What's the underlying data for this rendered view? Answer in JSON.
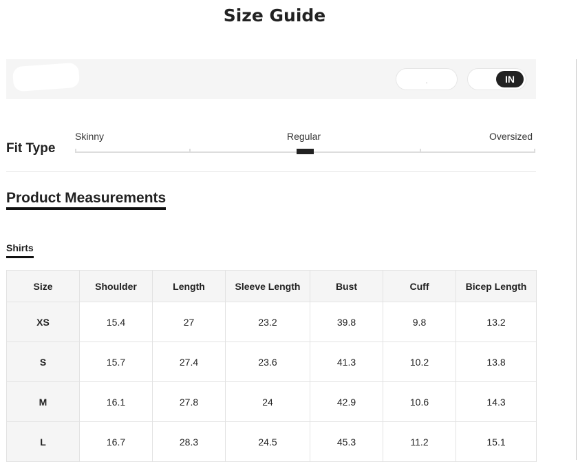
{
  "title": "Size Guide",
  "unit_toggle": {
    "selected": "IN"
  },
  "fit_type": {
    "label": "Fit Type",
    "options": [
      "Skinny",
      "Regular",
      "Oversized"
    ],
    "selected": "Regular"
  },
  "section_title": "Product Measurements",
  "tabs": [
    {
      "label": "Shirts",
      "active": true
    }
  ],
  "table": {
    "headers": [
      "Size",
      "Shoulder",
      "Length",
      "Sleeve Length",
      "Bust",
      "Cuff",
      "Bicep Length"
    ],
    "rows": [
      [
        "XS",
        "15.4",
        "27",
        "23.2",
        "39.8",
        "9.8",
        "13.2"
      ],
      [
        "S",
        "15.7",
        "27.4",
        "23.6",
        "41.3",
        "10.2",
        "13.8"
      ],
      [
        "M",
        "16.1",
        "27.8",
        "24",
        "42.9",
        "10.6",
        "14.3"
      ],
      [
        "L",
        "16.7",
        "28.3",
        "24.5",
        "45.3",
        "11.2",
        "15.1"
      ]
    ]
  }
}
